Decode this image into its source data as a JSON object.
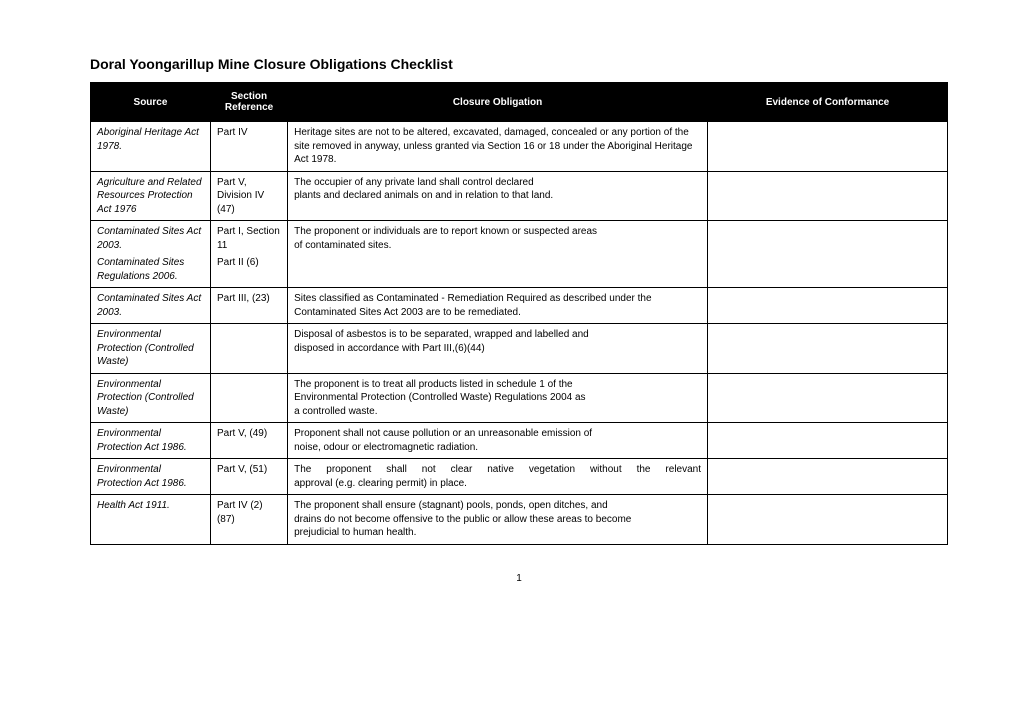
{
  "title": "Doral Yoongarillup Mine Closure Obligations Checklist",
  "columns": [
    "Source",
    "Section Reference",
    "Closure Obligation",
    "Evidence of Conformance"
  ],
  "rows": [
    {
      "source": [
        "Aboriginal Heritage Act 1978."
      ],
      "ref": [
        "Part IV"
      ],
      "obligation": "Heritage sites are not to be altered, excavated, damaged, concealed or any portion of the site removed in anyway, unless granted via Section 16 or 18 under the Aboriginal Heritage Act 1978.",
      "evidence": ""
    },
    {
      "source": [
        "Agriculture and Related Resources Protection Act 1976"
      ],
      "ref": [
        "Part V, Division IV (47)"
      ],
      "obligation": "The occupier of any private land shall control declared\nplants and declared animals on and in relation to that land.",
      "evidence": ""
    },
    {
      "source": [
        "Contaminated Sites Act 2003.",
        "Contaminated Sites Regulations 2006."
      ],
      "ref": [
        "Part I, Section 11",
        "Part II (6)"
      ],
      "obligation": "The proponent or individuals are to report known or suspected areas\nof contaminated sites.",
      "evidence": ""
    },
    {
      "source": [
        "Contaminated Sites Act 2003."
      ],
      "ref": [
        "Part III, (23)"
      ],
      "obligation": "Sites classified as Contaminated - Remediation Required as described under the Contaminated Sites Act 2003 are to be remediated.",
      "evidence": ""
    },
    {
      "source": [
        "Environmental Protection (Controlled Waste)"
      ],
      "ref": [
        ""
      ],
      "obligation": "Disposal of asbestos is to be separated, wrapped and labelled and\ndisposed in accordance with Part III,(6)(44)",
      "evidence": ""
    },
    {
      "source": [
        "Environmental Protection (Controlled Waste)"
      ],
      "ref": [
        ""
      ],
      "obligation": "The proponent is to treat all products listed in schedule 1 of the\nEnvironmental Protection (Controlled Waste) Regulations 2004 as\na controlled waste.",
      "evidence": ""
    },
    {
      "source": [
        "Environmental Protection Act 1986."
      ],
      "ref": [
        "Part V, (49)"
      ],
      "obligation": "Proponent shall not cause pollution or an unreasonable emission of\nnoise, odour or electromagnetic radiation.",
      "evidence": ""
    },
    {
      "source": [
        "Environmental Protection Act 1986."
      ],
      "ref": [
        "Part V, (51)"
      ],
      "obligation_justify_first": true,
      "obligation": "The proponent shall not clear native vegetation without the relevant\napproval (e.g. clearing permit) in place.",
      "evidence": ""
    },
    {
      "source": [
        "Health Act 1911."
      ],
      "ref": [
        "Part IV (2) (87)"
      ],
      "obligation": "The proponent shall ensure (stagnant) pools, ponds, open ditches, and\ndrains do not become offensive to the public or allow these areas to become\nprejudicial to human health.",
      "evidence": ""
    }
  ],
  "page_number": "1"
}
